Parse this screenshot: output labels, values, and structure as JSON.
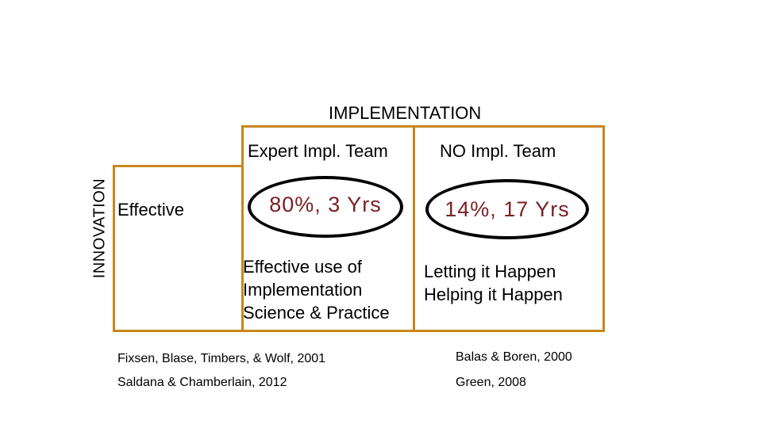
{
  "axis": {
    "column_title": "IMPLEMENTATION",
    "row_title": "INNOVATION"
  },
  "columns": [
    "Expert Impl. Team",
    "NO Impl. Team"
  ],
  "rows": [
    "Effective"
  ],
  "cells": {
    "effective_expert": "80%, 3 Yrs",
    "effective_none": "14%, 17 Yrs",
    "desc_expert": [
      "Effective use of",
      "Implementation",
      "Science & Practice"
    ],
    "desc_none": [
      "Letting it Happen",
      "Helping it Happen"
    ]
  },
  "references": {
    "expert": [
      "Fixsen, Blase, Timbers, & Wolf, 2001",
      "Saldana & Chamberlain, 2012"
    ],
    "none": [
      "Balas & Boren, 2000",
      "Green, 2008"
    ]
  },
  "colors": {
    "grid": "#c8861c",
    "highlight_text": "#7a1f24",
    "oval_border": "#000000"
  }
}
